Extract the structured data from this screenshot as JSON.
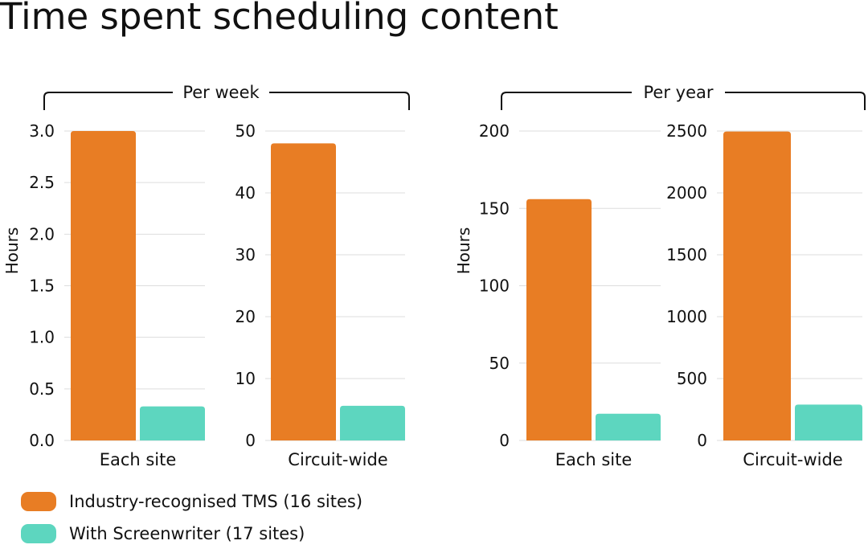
{
  "title": "Time spent scheduling content",
  "colors": {
    "tms": "#E87D24",
    "screenwriter": "#5DD6BF",
    "grid": "#DDDDDD"
  },
  "groups": [
    {
      "label": "Per week",
      "ylabel": "Hours"
    },
    {
      "label": "Per year",
      "ylabel": "Hours"
    }
  ],
  "legend": [
    {
      "label": "Industry-recognised TMS (16 sites)",
      "color": "#E87D24"
    },
    {
      "label": "With Screenwriter (17 sites)",
      "color": "#5DD6BF"
    }
  ],
  "chart_data": [
    {
      "type": "bar",
      "group": "Per week",
      "ylabel": "Hours",
      "categories": [
        "Each site"
      ],
      "ylim": [
        0,
        3.0
      ],
      "yticks": [
        "0.0",
        "0.5",
        "1.0",
        "1.5",
        "2.0",
        "2.5",
        "3.0"
      ],
      "series": [
        {
          "name": "Industry-recognised TMS (16 sites)",
          "values": [
            3.0
          ]
        },
        {
          "name": "With Screenwriter (17 sites)",
          "values": [
            0.33
          ]
        }
      ]
    },
    {
      "type": "bar",
      "group": "Per week",
      "ylabel": "",
      "categories": [
        "Circuit-wide"
      ],
      "ylim": [
        0,
        50
      ],
      "yticks": [
        "0",
        "10",
        "20",
        "30",
        "40",
        "50"
      ],
      "series": [
        {
          "name": "Industry-recognised TMS (16 sites)",
          "values": [
            48
          ]
        },
        {
          "name": "With Screenwriter (17 sites)",
          "values": [
            5.6
          ]
        }
      ]
    },
    {
      "type": "bar",
      "group": "Per year",
      "ylabel": "Hours",
      "categories": [
        "Each site"
      ],
      "ylim": [
        0,
        200
      ],
      "yticks": [
        "0",
        "50",
        "100",
        "150",
        "200"
      ],
      "series": [
        {
          "name": "Industry-recognised TMS (16 sites)",
          "values": [
            156
          ]
        },
        {
          "name": "With Screenwriter (17 sites)",
          "values": [
            17.3
          ]
        }
      ]
    },
    {
      "type": "bar",
      "group": "Per year",
      "ylabel": "",
      "categories": [
        "Circuit-wide"
      ],
      "ylim": [
        0,
        2500
      ],
      "yticks": [
        "0",
        "500",
        "1000",
        "1500",
        "2000",
        "2500"
      ],
      "series": [
        {
          "name": "Industry-recognised TMS (16 sites)",
          "values": [
            2496
          ]
        },
        {
          "name": "With Screenwriter (17 sites)",
          "values": [
            290
          ]
        }
      ]
    }
  ]
}
